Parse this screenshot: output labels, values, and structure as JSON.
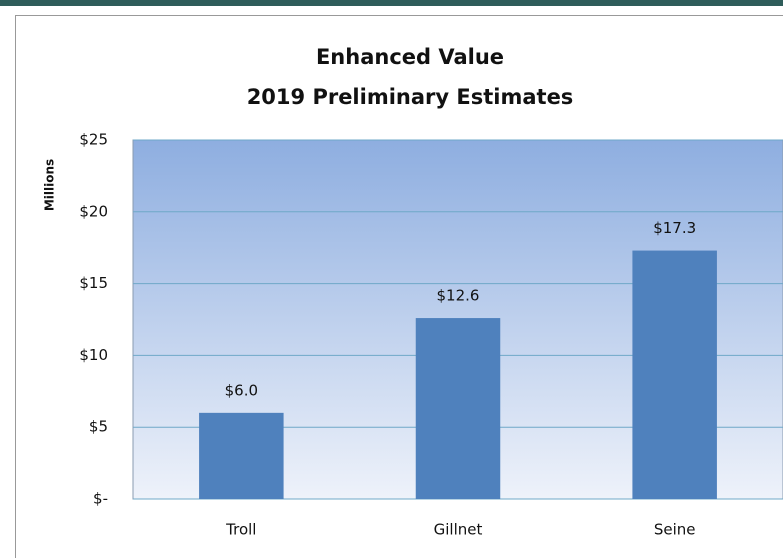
{
  "chart_data": {
    "type": "bar",
    "title": "Enhanced Value",
    "subtitle": "2019 Preliminary Estimates",
    "y_label": "Millions",
    "categories": [
      "Troll",
      "Gillnet",
      "Seine"
    ],
    "values": [
      6.0,
      12.6,
      17.3
    ],
    "value_labels": [
      "$6.0",
      "$12.6",
      "$17.3"
    ],
    "color": "#4f81bd",
    "ylim": [
      0,
      25
    ],
    "yticks": [
      {
        "value": 0,
        "label": "$-"
      },
      {
        "value": 5,
        "label": "$5"
      },
      {
        "value": 10,
        "label": "$10"
      },
      {
        "value": 15,
        "label": "$15"
      },
      {
        "value": 20,
        "label": "$20"
      },
      {
        "value": 25,
        "label": "$25"
      }
    ],
    "grid": true
  }
}
